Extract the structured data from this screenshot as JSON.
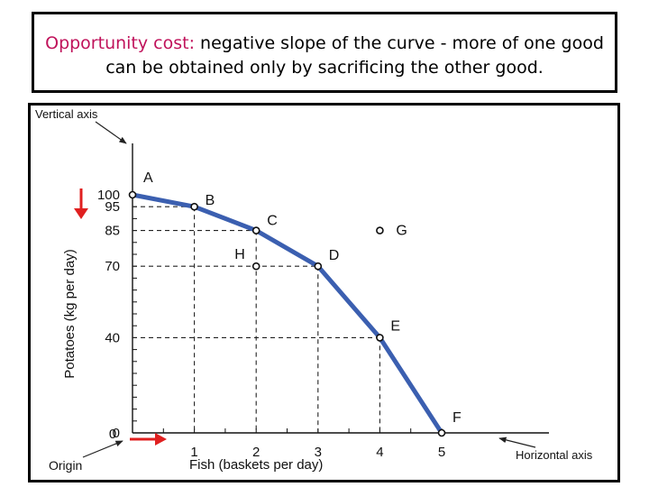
{
  "caption": {
    "highlight": "Opportunity cost:",
    "rest": " negative slope of the curve - more of one good can be obtained only by sacrificing the other good."
  },
  "colors": {
    "curve": "#3b5fb0",
    "highlight": "#c0135b",
    "arrows": "#e02020"
  },
  "chart_data": {
    "type": "line",
    "title": "",
    "xlabel": "Fish (baskets per day)",
    "ylabel": "Potatoes (kg per day)",
    "xlim": [
      0,
      5
    ],
    "ylim": [
      0,
      100
    ],
    "x_ticks": [
      "0",
      "1",
      "2",
      "3",
      "4",
      "5"
    ],
    "y_ticks": [
      "0",
      "40",
      "70",
      "85",
      "95",
      "100"
    ],
    "series": [
      {
        "points": [
          {
            "label": "A",
            "x": 0,
            "y": 100
          },
          {
            "label": "B",
            "x": 1,
            "y": 95
          },
          {
            "label": "C",
            "x": 2,
            "y": 85
          },
          {
            "label": "D",
            "x": 3,
            "y": 70
          },
          {
            "label": "E",
            "x": 4,
            "y": 40
          },
          {
            "label": "F",
            "x": 5,
            "y": 0
          }
        ]
      }
    ],
    "other_points": [
      {
        "label": "G",
        "x": 4,
        "y": 85
      },
      {
        "label": "H",
        "x": 2,
        "y": 70
      }
    ],
    "annotations": {
      "vertical_axis": "Vertical axis",
      "horizontal_axis": "Horizontal axis",
      "origin": "Origin"
    },
    "grid": false
  }
}
